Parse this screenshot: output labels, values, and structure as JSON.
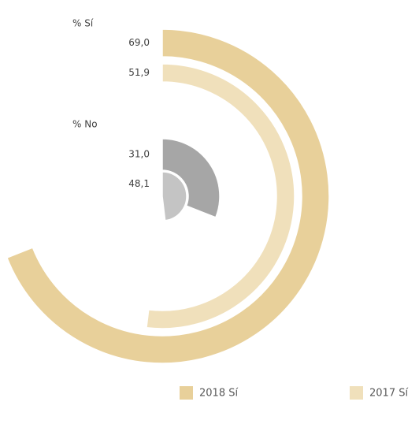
{
  "chart_data": {
    "type": "radial_bar",
    "value_range": [
      0,
      100
    ],
    "groups": [
      {
        "label": "% Sí",
        "series": [
          {
            "name": "2018 Sí",
            "color": "#e8d09a",
            "value": 69.0,
            "value_label": "69,0"
          },
          {
            "name": "2017 Sí",
            "color": "#f0e0bb",
            "value": 51.9,
            "value_label": "51,9"
          }
        ]
      },
      {
        "label": "% No",
        "series": [
          {
            "color": "#a6a6a6",
            "value": 31.0,
            "value_label": "31,0"
          },
          {
            "color": "#c4c4c4",
            "value": 48.1,
            "value_label": "48,1"
          }
        ]
      }
    ]
  }
}
